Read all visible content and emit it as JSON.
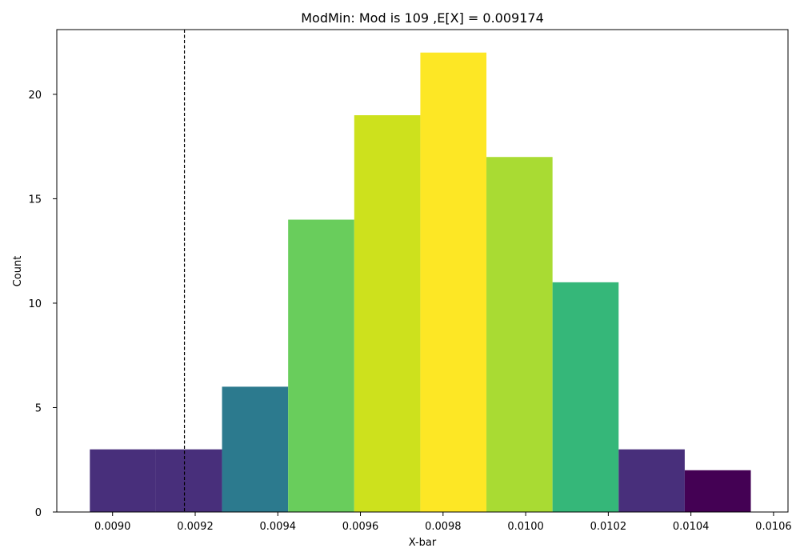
{
  "chart_data": {
    "type": "bar",
    "title": "ModMin: Mod is 109 ,E[X] = 0.009174",
    "xlabel": "X-bar",
    "ylabel": "Count",
    "xlim": [
      0.008865,
      0.010635
    ],
    "ylim": [
      0,
      23.1
    ],
    "xticks": [
      {
        "value": 0.009,
        "label": "0.0090"
      },
      {
        "value": 0.0092,
        "label": "0.0092"
      },
      {
        "value": 0.0094,
        "label": "0.0094"
      },
      {
        "value": 0.0096,
        "label": "0.0096"
      },
      {
        "value": 0.0098,
        "label": "0.0098"
      },
      {
        "value": 0.01,
        "label": "0.0100"
      },
      {
        "value": 0.0102,
        "label": "0.0102"
      },
      {
        "value": 0.0104,
        "label": "0.0104"
      },
      {
        "value": 0.0106,
        "label": "0.0106"
      }
    ],
    "yticks": [
      {
        "value": 0,
        "label": "0"
      },
      {
        "value": 5,
        "label": "5"
      },
      {
        "value": 10,
        "label": "10"
      },
      {
        "value": 15,
        "label": "15"
      },
      {
        "value": 20,
        "label": "20"
      }
    ],
    "bins": [
      {
        "x0": 0.008945,
        "x1": 0.009105,
        "count": 3,
        "color": "#482f7b"
      },
      {
        "x0": 0.009105,
        "x1": 0.009265,
        "count": 3,
        "color": "#482f7b"
      },
      {
        "x0": 0.009265,
        "x1": 0.009425,
        "count": 6,
        "color": "#2c7a8e"
      },
      {
        "x0": 0.009425,
        "x1": 0.009585,
        "count": 14,
        "color": "#69cd5c"
      },
      {
        "x0": 0.009585,
        "x1": 0.009745,
        "count": 19,
        "color": "#cde11d"
      },
      {
        "x0": 0.009745,
        "x1": 0.009905,
        "count": 22,
        "color": "#fde725"
      },
      {
        "x0": 0.009905,
        "x1": 0.010065,
        "count": 17,
        "color": "#a9db33"
      },
      {
        "x0": 0.010065,
        "x1": 0.010225,
        "count": 11,
        "color": "#35b779"
      },
      {
        "x0": 0.010225,
        "x1": 0.010385,
        "count": 3,
        "color": "#482f7b"
      },
      {
        "x0": 0.010385,
        "x1": 0.010545,
        "count": 2,
        "color": "#440154"
      }
    ],
    "reference_line": {
      "x": 0.009174,
      "style": "dashed",
      "color": "#000000"
    },
    "grid": false,
    "legend": "none"
  }
}
